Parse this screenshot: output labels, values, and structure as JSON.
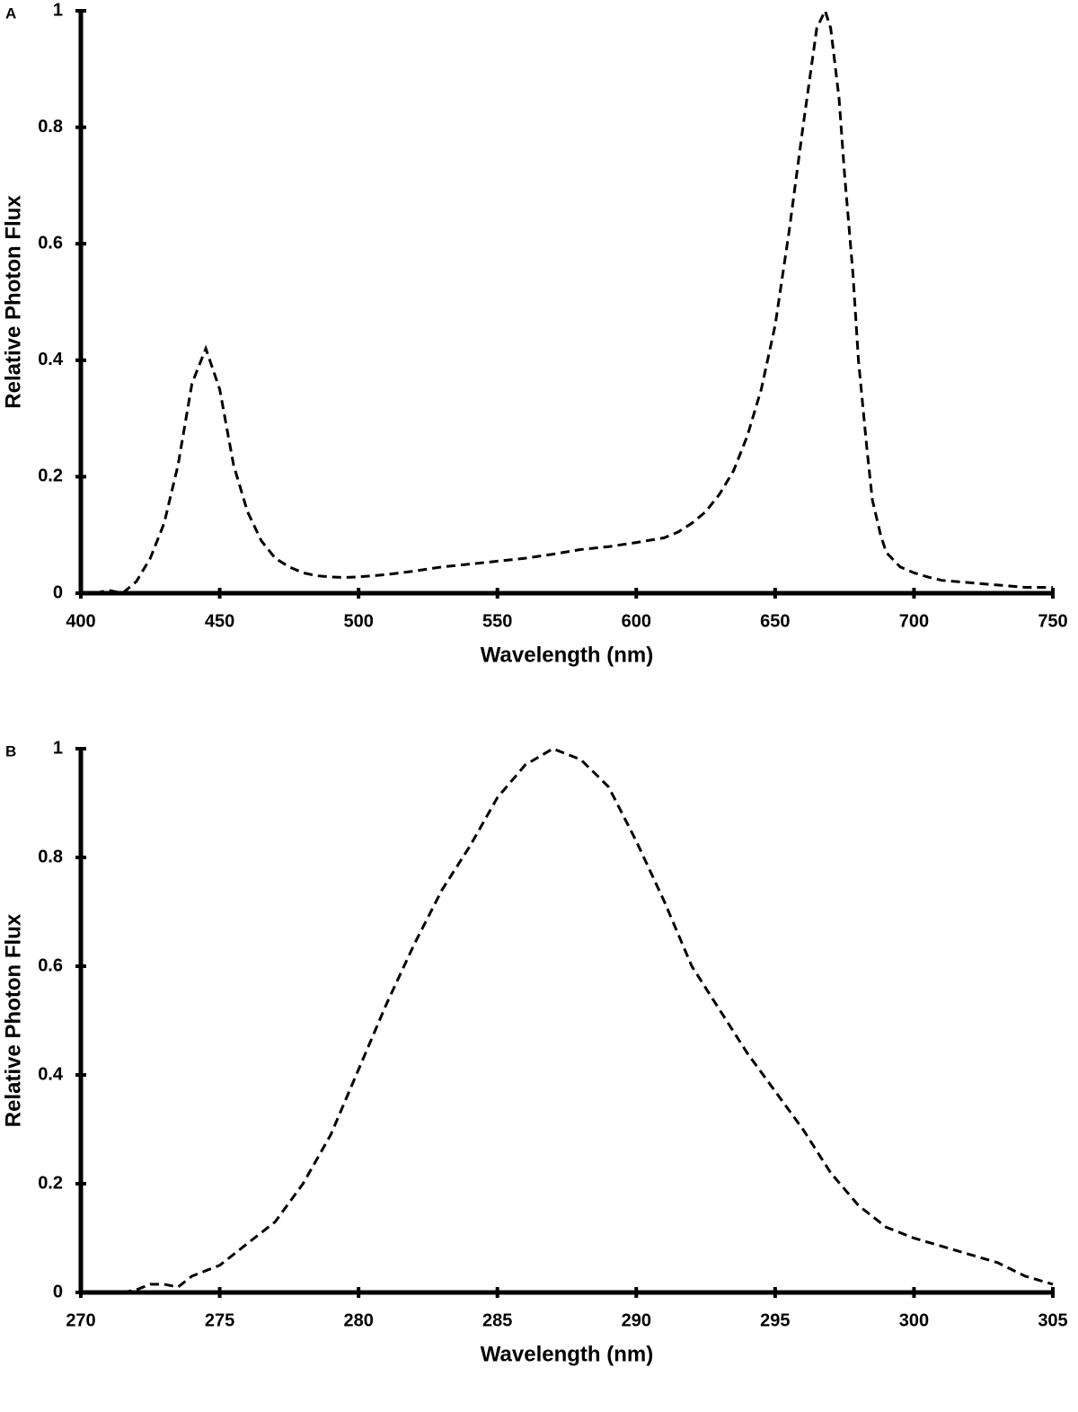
{
  "chart_data": [
    {
      "type": "line",
      "label": "A",
      "xlabel": "Wavelength (nm)",
      "ylabel": "Relative Photon Flux",
      "xlim": [
        400,
        750
      ],
      "xticks": [
        400,
        450,
        500,
        550,
        600,
        650,
        700,
        750
      ],
      "ylim": [
        0,
        1
      ],
      "yticks": [
        0,
        0.2,
        0.4,
        0.6,
        0.8,
        1
      ],
      "x": [
        400,
        405,
        410,
        415,
        420,
        425,
        430,
        435,
        440,
        445,
        450,
        455,
        460,
        465,
        470,
        475,
        480,
        485,
        490,
        495,
        500,
        510,
        520,
        530,
        540,
        550,
        560,
        570,
        580,
        590,
        600,
        610,
        615,
        620,
        625,
        630,
        635,
        640,
        645,
        650,
        655,
        660,
        665,
        668,
        670,
        673,
        675,
        678,
        680,
        683,
        685,
        688,
        690,
        695,
        700,
        705,
        710,
        720,
        730,
        740,
        750
      ],
      "series": [
        {
          "color": "#000000",
          "values": [
            0,
            0,
            0.005,
            0,
            0.02,
            0.06,
            0.12,
            0.22,
            0.36,
            0.42,
            0.35,
            0.22,
            0.14,
            0.09,
            0.06,
            0.045,
            0.035,
            0.03,
            0.028,
            0.027,
            0.028,
            0.032,
            0.038,
            0.045,
            0.05,
            0.055,
            0.06,
            0.067,
            0.075,
            0.08,
            0.087,
            0.095,
            0.105,
            0.12,
            0.14,
            0.17,
            0.21,
            0.27,
            0.35,
            0.46,
            0.62,
            0.8,
            0.97,
            1.0,
            0.97,
            0.85,
            0.72,
            0.55,
            0.4,
            0.25,
            0.16,
            0.1,
            0.07,
            0.045,
            0.035,
            0.028,
            0.022,
            0.018,
            0.014,
            0.01,
            0.01
          ]
        }
      ]
    },
    {
      "type": "line",
      "label": "B",
      "xlabel": "Wavelength (nm)",
      "ylabel": "Relative Photon Flux",
      "xlim": [
        270,
        305
      ],
      "xticks": [
        270,
        275,
        280,
        285,
        290,
        295,
        300,
        305
      ],
      "ylim": [
        0,
        1
      ],
      "yticks": [
        0,
        0.2,
        0.4,
        0.6,
        0.8,
        1
      ],
      "x": [
        271.5,
        272,
        272.5,
        273,
        273.5,
        274,
        275,
        276,
        277,
        278,
        279,
        280,
        281,
        282,
        283,
        284,
        285,
        286,
        287,
        288,
        289,
        290,
        291,
        292,
        293,
        294,
        295,
        296,
        297,
        298,
        299,
        300,
        301,
        302,
        303,
        304,
        305
      ],
      "series": [
        {
          "color": "#000000",
          "values": [
            0,
            0.005,
            0.015,
            0.015,
            0.01,
            0.03,
            0.05,
            0.09,
            0.13,
            0.2,
            0.29,
            0.41,
            0.53,
            0.64,
            0.74,
            0.82,
            0.91,
            0.97,
            1.0,
            0.98,
            0.93,
            0.83,
            0.72,
            0.6,
            0.52,
            0.44,
            0.37,
            0.3,
            0.22,
            0.16,
            0.12,
            0.1,
            0.085,
            0.07,
            0.055,
            0.03,
            0.015
          ]
        }
      ]
    }
  ]
}
